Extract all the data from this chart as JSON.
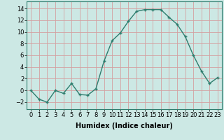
{
  "x": [
    0,
    1,
    2,
    3,
    4,
    5,
    6,
    7,
    8,
    9,
    10,
    11,
    12,
    13,
    14,
    15,
    16,
    17,
    18,
    19,
    20,
    21,
    22,
    23
  ],
  "y": [
    0,
    -1.5,
    -2,
    0,
    -0.5,
    1.2,
    -0.7,
    -0.8,
    0.3,
    5,
    8.5,
    9.8,
    11.8,
    13.5,
    13.8,
    13.8,
    13.8,
    12.5,
    11.3,
    9.2,
    6.0,
    3.3,
    1.2,
    2.2
  ],
  "line_color": "#2e7d6e",
  "marker": "+",
  "marker_size": 3,
  "linewidth": 1.0,
  "bg_color": "#cce8e4",
  "grid_color": "#d4a0a0",
  "xlabel": "Humidex (Indice chaleur)",
  "xlabel_fontsize": 7,
  "xlabel_bold": true,
  "ylabel_ticks": [
    -2,
    0,
    2,
    4,
    6,
    8,
    10,
    12,
    14
  ],
  "xlim": [
    -0.5,
    23.5
  ],
  "ylim": [
    -3.2,
    15.2
  ],
  "xtick_labels": [
    "0",
    "1",
    "2",
    "3",
    "4",
    "5",
    "6",
    "7",
    "8",
    "9",
    "10",
    "11",
    "12",
    "13",
    "14",
    "15",
    "16",
    "17",
    "18",
    "19",
    "20",
    "21",
    "22",
    "23"
  ],
  "tick_fontsize": 6
}
